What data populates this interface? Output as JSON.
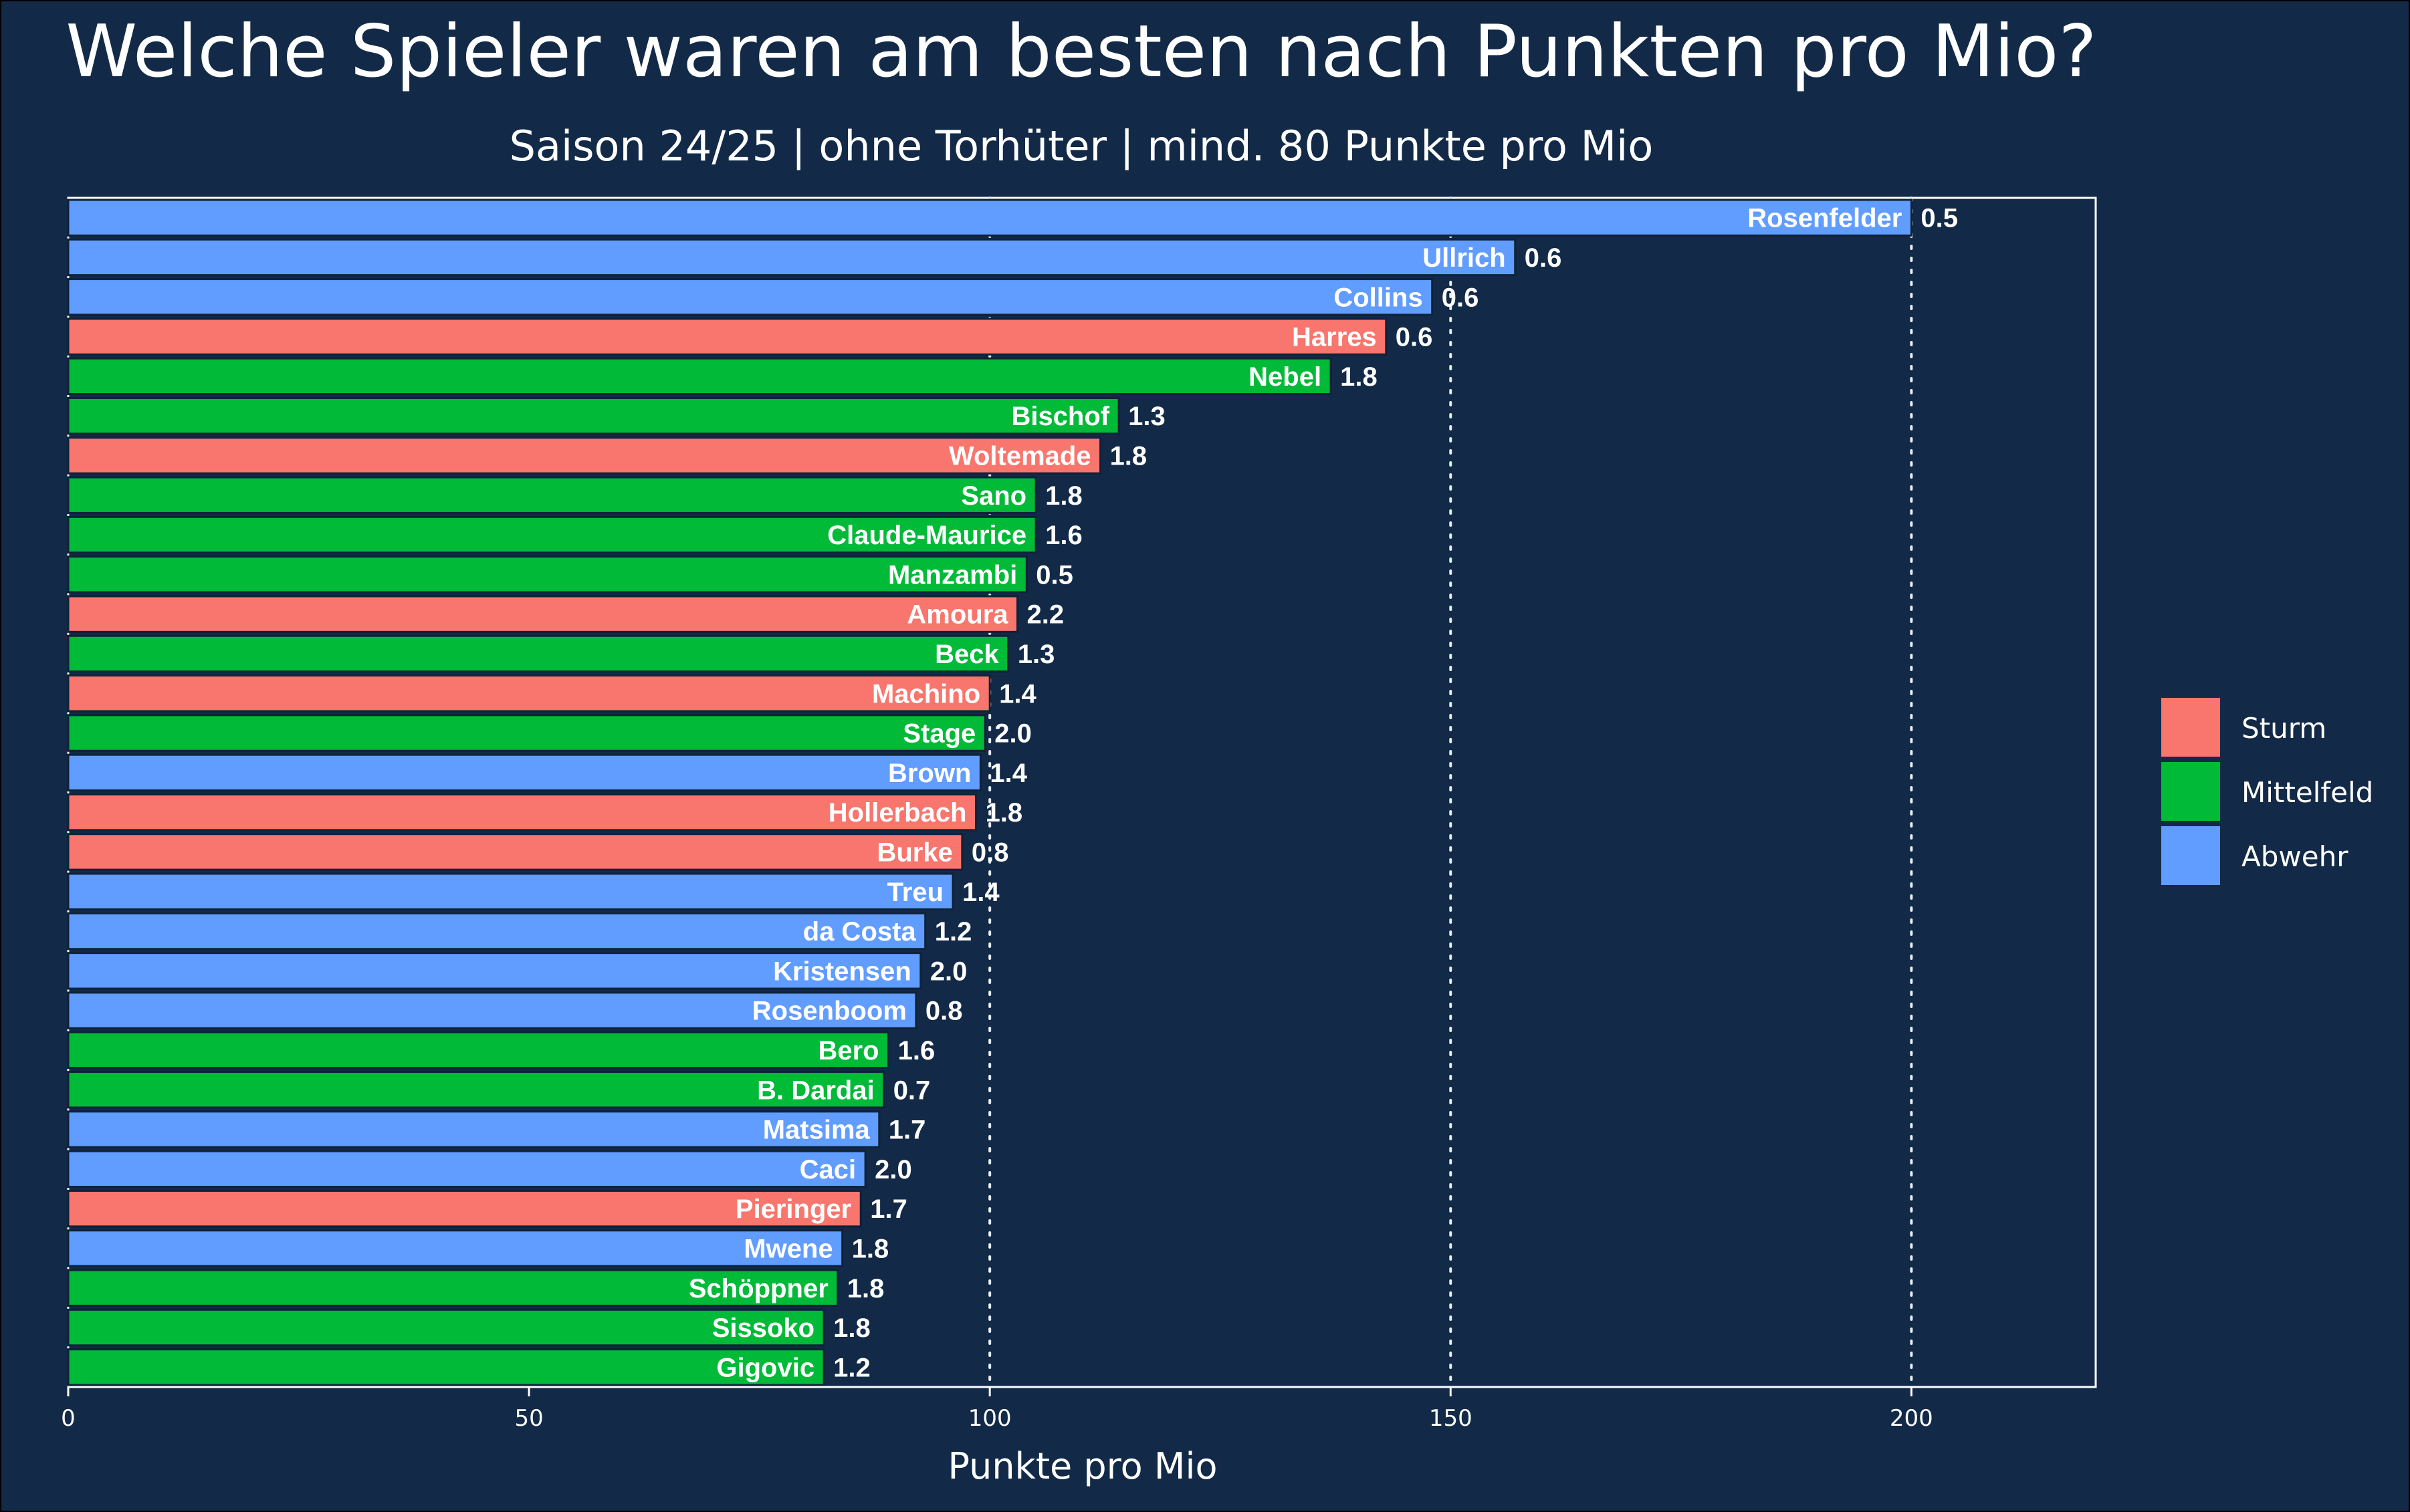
{
  "chart_data": {
    "type": "bar",
    "orientation": "horizontal",
    "title": "Welche Spieler waren am besten nach Punkten pro Mio?",
    "subtitle": "Saison 24/25 | ohne Torhüter | mind. 80 Punkte pro Mio",
    "xlabel": "Punkte pro Mio",
    "ylabel": "",
    "xlim": [
      0,
      220
    ],
    "xticks": [
      0,
      50,
      100,
      150,
      200
    ],
    "grid": "vertical dotted lines at 100, 150, 200",
    "legend_position": "right",
    "colors": {
      "Sturm": "#f8766d",
      "Mittelfeld": "#00ba38",
      "Abwehr": "#619cff"
    },
    "legend": [
      "Sturm",
      "Mittelfeld",
      "Abwehr"
    ],
    "bars": [
      {
        "name": "Rosenfelder",
        "value": 200,
        "label": "0.5",
        "position": "Abwehr"
      },
      {
        "name": "Ullrich",
        "value": 157,
        "label": "0.6",
        "position": "Abwehr"
      },
      {
        "name": "Collins",
        "value": 148,
        "label": "0.6",
        "position": "Abwehr"
      },
      {
        "name": "Harres",
        "value": 143,
        "label": "0.6",
        "position": "Sturm"
      },
      {
        "name": "Nebel",
        "value": 137,
        "label": "1.8",
        "position": "Mittelfeld"
      },
      {
        "name": "Bischof",
        "value": 114,
        "label": "1.3",
        "position": "Mittelfeld"
      },
      {
        "name": "Woltemade",
        "value": 112,
        "label": "1.8",
        "position": "Sturm"
      },
      {
        "name": "Sano",
        "value": 105,
        "label": "1.8",
        "position": "Mittelfeld"
      },
      {
        "name": "Claude-Maurice",
        "value": 105,
        "label": "1.6",
        "position": "Mittelfeld"
      },
      {
        "name": "Manzambi",
        "value": 104,
        "label": "0.5",
        "position": "Mittelfeld"
      },
      {
        "name": "Amoura",
        "value": 103,
        "label": "2.2",
        "position": "Sturm"
      },
      {
        "name": "Beck",
        "value": 102,
        "label": "1.3",
        "position": "Mittelfeld"
      },
      {
        "name": "Machino",
        "value": 100,
        "label": "1.4",
        "position": "Sturm"
      },
      {
        "name": "Stage",
        "value": 99.5,
        "label": "2.0",
        "position": "Mittelfeld"
      },
      {
        "name": "Brown",
        "value": 99,
        "label": "1.4",
        "position": "Abwehr"
      },
      {
        "name": "Hollerbach",
        "value": 98.5,
        "label": "1.8",
        "position": "Sturm"
      },
      {
        "name": "Burke",
        "value": 97,
        "label": "0.8",
        "position": "Sturm"
      },
      {
        "name": "Treu",
        "value": 96,
        "label": "1.4",
        "position": "Abwehr"
      },
      {
        "name": "da Costa",
        "value": 93,
        "label": "1.2",
        "position": "Abwehr"
      },
      {
        "name": "Kristensen",
        "value": 92.5,
        "label": "2.0",
        "position": "Abwehr"
      },
      {
        "name": "Rosenboom",
        "value": 92,
        "label": "0.8",
        "position": "Abwehr"
      },
      {
        "name": "Bero",
        "value": 89,
        "label": "1.6",
        "position": "Mittelfeld"
      },
      {
        "name": "B. Dardai",
        "value": 88.5,
        "label": "0.7",
        "position": "Mittelfeld"
      },
      {
        "name": "Matsima",
        "value": 88,
        "label": "1.7",
        "position": "Abwehr"
      },
      {
        "name": "Caci",
        "value": 86.5,
        "label": "2.0",
        "position": "Abwehr"
      },
      {
        "name": "Pieringer",
        "value": 86,
        "label": "1.7",
        "position": "Sturm"
      },
      {
        "name": "Mwene",
        "value": 84,
        "label": "1.8",
        "position": "Abwehr"
      },
      {
        "name": "Schöppner",
        "value": 83.5,
        "label": "1.8",
        "position": "Mittelfeld"
      },
      {
        "name": "Sissoko",
        "value": 82,
        "label": "1.8",
        "position": "Mittelfeld"
      },
      {
        "name": "Gigovic",
        "value": 82,
        "label": "1.2",
        "position": "Mittelfeld"
      }
    ]
  }
}
